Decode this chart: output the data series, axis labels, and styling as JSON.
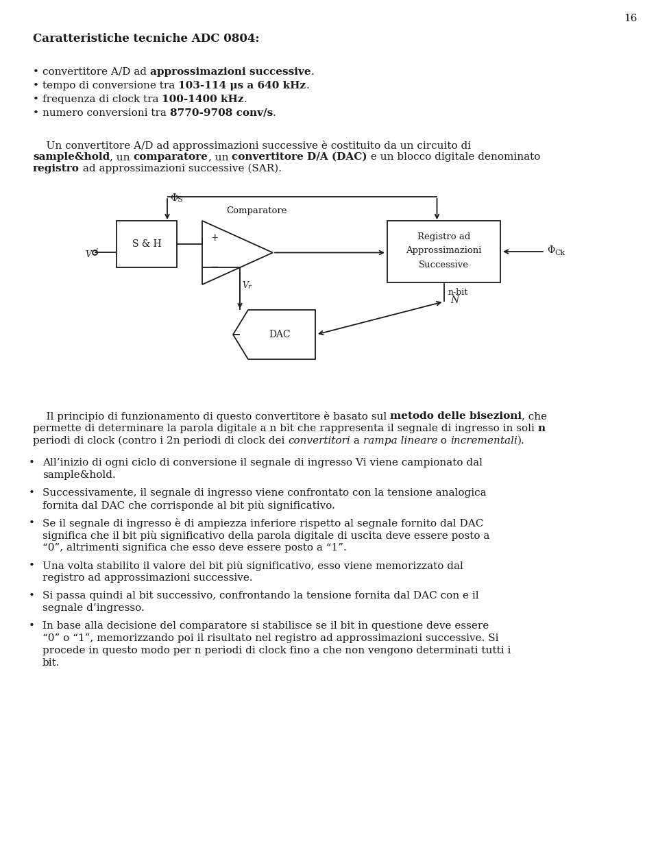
{
  "page_number": "16",
  "title": "Caratteristiche tecniche ADC 0804:",
  "bullets_top": [
    [
      "• convertitore A/D ad ",
      "approssimazioni successive",
      "."
    ],
    [
      "• tempo di conversione tra ",
      "103-114 μs a 640 kHz",
      "."
    ],
    [
      "• frequenza di clock tra ",
      "100-1400 kHz",
      "."
    ],
    [
      "• numero conversioni tra ",
      "8770-9708 conv/s",
      "."
    ]
  ],
  "bullets_bottom": [
    "All’inizio di ogni ciclo di conversione il segnale di ingresso Vi viene campionato dal sample&hold.",
    "Successivamente, il segnale di ingresso viene confrontato con la tensione analogica fornita dal DAC che corrisponde al bit più significativo.",
    "Se il segnale di ingresso è di ampiezza inferiore rispetto al segnale fornito dal DAC significa che il bit più significativo della parola digitale di uscita deve essere posto a “0”, altrimenti significa che esso deve essere posto a “1”.",
    "Una volta stabilito il valore del bit più significativo, esso viene memorizzato dal registro ad approssimazioni successive.",
    "Si passa quindi al bit successivo, confrontando la tensione fornita dal DAC con e il segnale d’ingresso.",
    "In base alla decisione del comparatore si stabilisce se il bit in questione deve essere “0” o “1”, memorizzando poi il risultato nel registro ad approssimazioni successive. Si procede in questo modo per n periodi di clock fino a che non vengono determinati tutti i bit."
  ],
  "bg_color": "#ffffff",
  "text_color": "#1a1a1a"
}
